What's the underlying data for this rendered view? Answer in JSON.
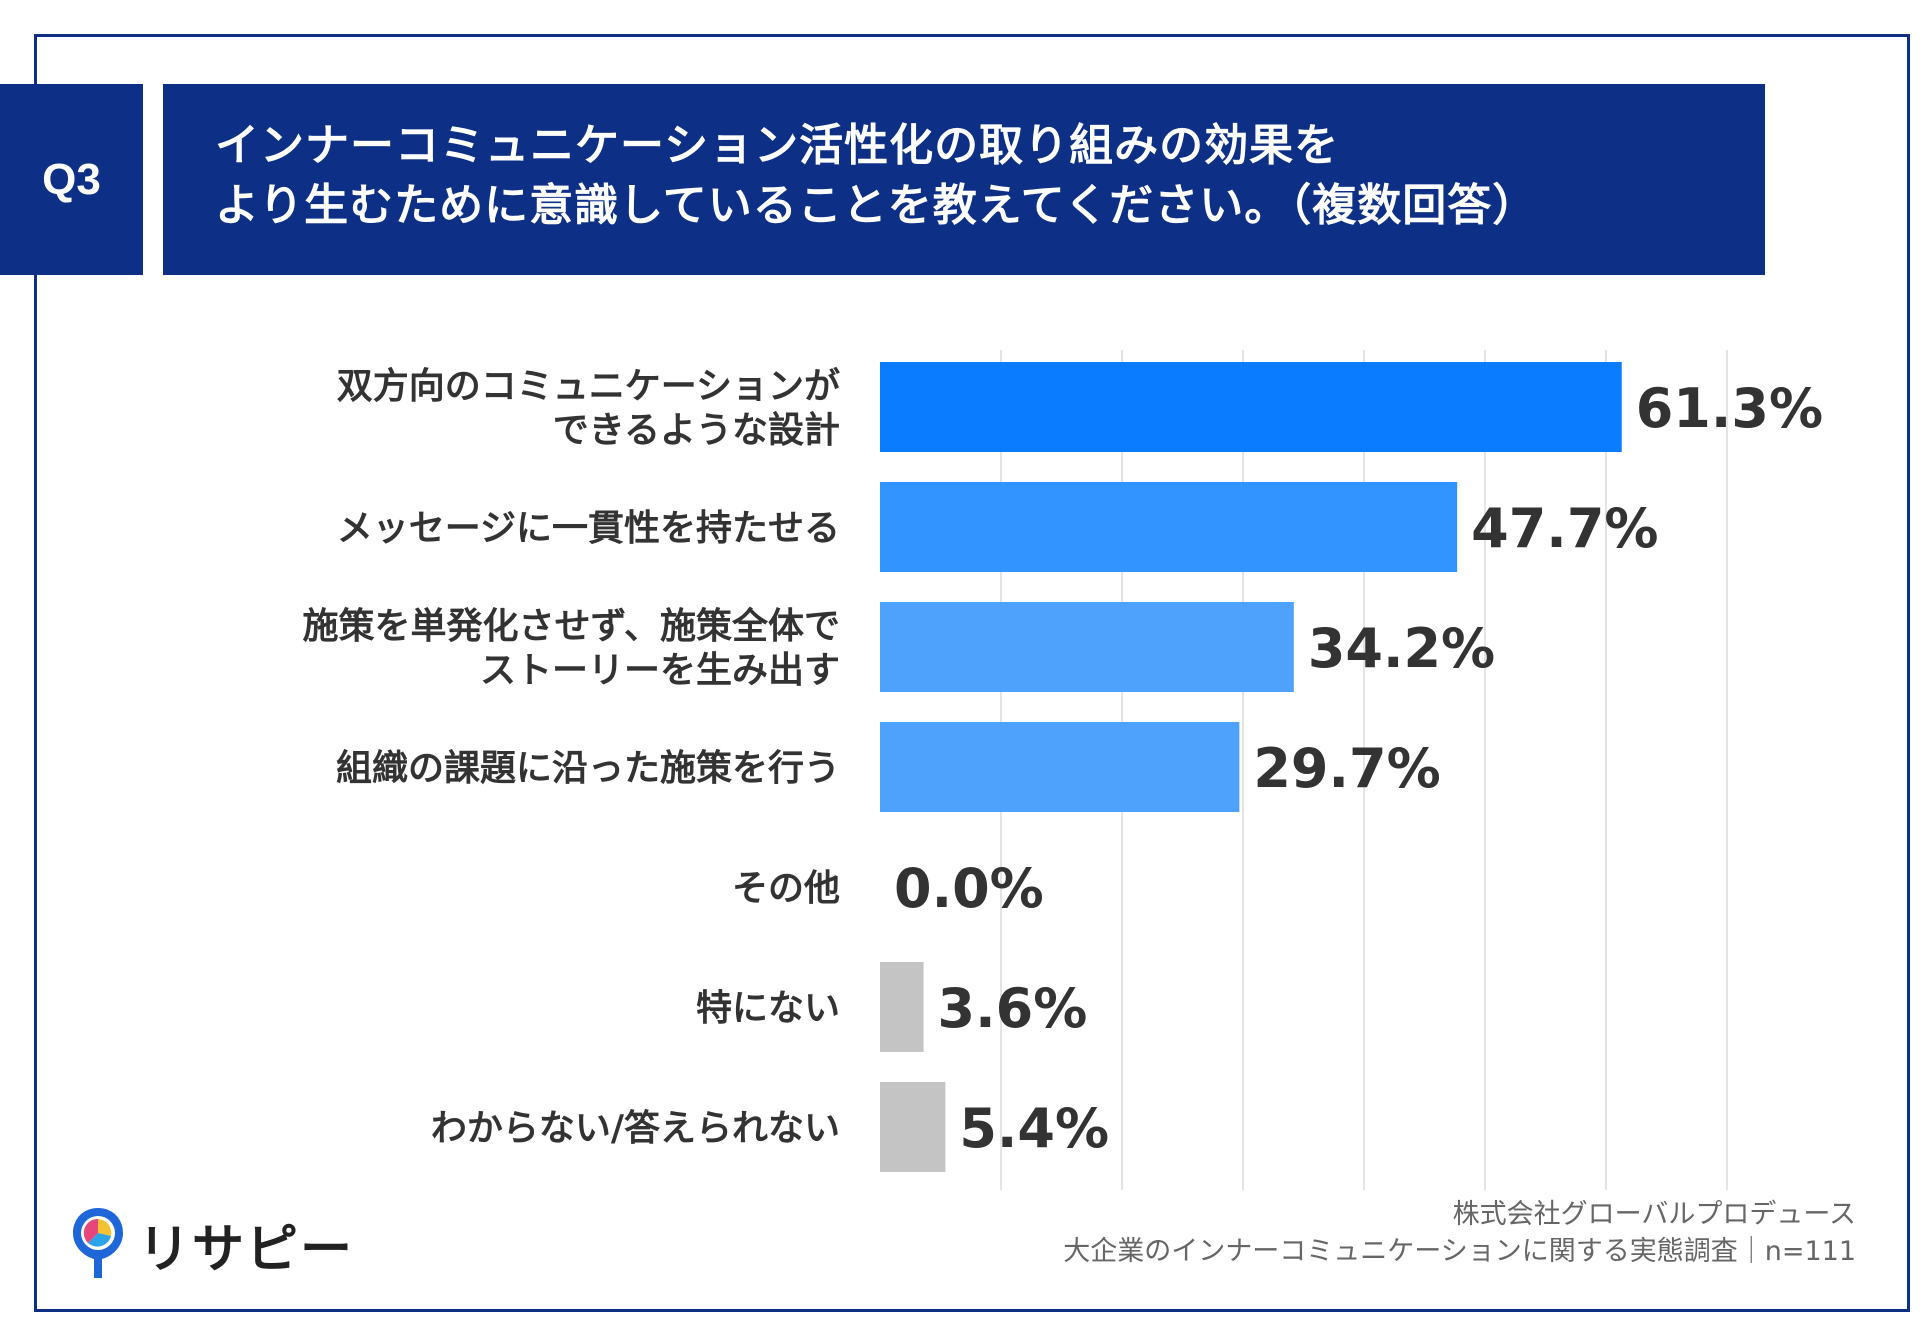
{
  "header": {
    "q_label": "Q3",
    "title_line1": "インナーコミュニケーション活性化の取り組みの効果を",
    "title_line2": "より生むために意識していることを教えてください。（複数回答）"
  },
  "chart_data": {
    "type": "bar",
    "orientation": "horizontal",
    "categories": [
      [
        "双方向のコミュニケーションが",
        "できるような設計"
      ],
      [
        "メッセージに一貫性を持たせる"
      ],
      [
        "施策を単発化させず、施策全体で",
        "ストーリーを生み出す"
      ],
      [
        "組織の課題に沿った施策を行う"
      ],
      [
        "その他"
      ],
      [
        "特にない"
      ],
      [
        "わからない/答えられない"
      ]
    ],
    "values": [
      61.3,
      47.7,
      34.2,
      29.7,
      0.0,
      3.6,
      5.4
    ],
    "value_labels": [
      "61.3%",
      "47.7%",
      "34.2%",
      "29.7%",
      "0.0%",
      "3.6%",
      "5.4%"
    ],
    "bar_colors": [
      "#0a7cff",
      "#3295ff",
      "#4ea2fb",
      "#4ea2fb",
      "#4ea2fb",
      "#c4c4c4",
      "#c4c4c4"
    ],
    "xlim": [
      0,
      70
    ],
    "grid": true
  },
  "footer": {
    "line1": "株式会社グローバルプロデュース",
    "line2": "大企業のインナーコミュニケーションに関する実態調査｜n=111"
  },
  "logo": {
    "text": "リサピー",
    "icon": "pin-logo-icon"
  }
}
